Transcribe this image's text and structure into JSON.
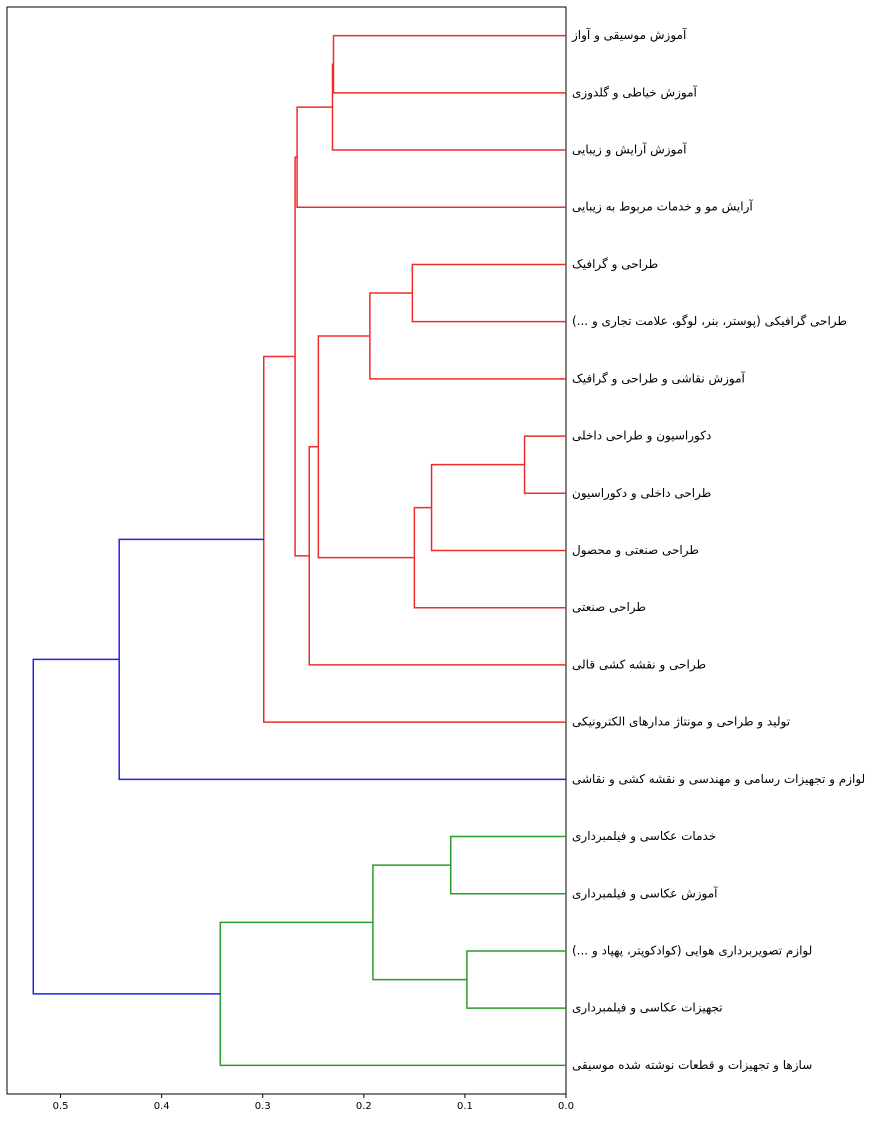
{
  "chart_data": {
    "type": "dendrogram",
    "leaves": [
      "آموزش موسیقی و آواز",
      "آموزش خیاطی و گلدوزی",
      "آموزش آرایش و زیبایی",
      "آرایش مو و خدمات مربوط به زیبایی",
      "طراحی و گرافیک",
      "طراحی گرافیکی (پوستر، بنر، لوگو، علامت تجاری و ...)",
      "آموزش نقاشی و طراحی و گرافیک",
      "دکوراسیون و طراحی داخلی",
      "طراحی داخلی و دکوراسیون",
      "طراحی صنعتی و محصول",
      "طراحی صنعتی",
      "طراحی و نقشه کشی قالی",
      "تولید و طراحی و مونتاژ مدارهای الکترونیکی",
      "لوازم و تجهیزات رسامی و مهندسی و نقشه کشی و نقاشی",
      "خدمات عکاسی و فیلمبرداری",
      "آموزش عکاسی و فیلمبرداری",
      "لوازم تصویربرداری هوایی (کوادکوپتر، پهپاد و ...)",
      "تجهیزات عکاسی و فیلمبرداری",
      "سازها و تجهیزات و قطعات نوشته شده موسیقی"
    ],
    "merges": [
      {
        "left": 0,
        "right": 1,
        "height": 0.23,
        "color": "#ee2c2c"
      },
      {
        "left": 19,
        "right": 2,
        "height": 0.231,
        "color": "#ee2c2c"
      },
      {
        "left": 20,
        "right": 3,
        "height": 0.266,
        "color": "#ee2c2c"
      },
      {
        "left": 4,
        "right": 5,
        "height": 0.152,
        "color": "#ee2c2c"
      },
      {
        "left": 22,
        "right": 6,
        "height": 0.194,
        "color": "#ee2c2c"
      },
      {
        "left": 7,
        "right": 8,
        "height": 0.041,
        "color": "#ee2c2c"
      },
      {
        "left": 24,
        "right": 9,
        "height": 0.133,
        "color": "#ee2c2c"
      },
      {
        "left": 25,
        "right": 10,
        "height": 0.15,
        "color": "#ee2c2c"
      },
      {
        "left": 23,
        "right": 26,
        "height": 0.245,
        "color": "#ee2c2c"
      },
      {
        "left": 27,
        "right": 11,
        "height": 0.254,
        "color": "#ee2c2c"
      },
      {
        "left": 21,
        "right": 28,
        "height": 0.268,
        "color": "#ee2c2c"
      },
      {
        "left": 29,
        "right": 12,
        "height": 0.299,
        "color": "#ee2c2c"
      },
      {
        "left": 30,
        "right": 13,
        "height": 0.442,
        "color": "#2323e8"
      },
      {
        "left": 14,
        "right": 15,
        "height": 0.114,
        "color": "#2a9d2a"
      },
      {
        "left": 16,
        "right": 17,
        "height": 0.098,
        "color": "#2a9d2a"
      },
      {
        "left": 32,
        "right": 33,
        "height": 0.191,
        "color": "#2a9d2a"
      },
      {
        "left": 34,
        "right": 18,
        "height": 0.342,
        "color": "#2a9d2a"
      },
      {
        "left": 31,
        "right": 35,
        "height": 0.527,
        "color": "#2323e8"
      }
    ],
    "xlim": [
      0.553,
      0
    ],
    "xticks": [
      0.5,
      0.4,
      0.3,
      0.2,
      0.1,
      {
        "value": 0,
        "label": "0.0"
      }
    ]
  }
}
